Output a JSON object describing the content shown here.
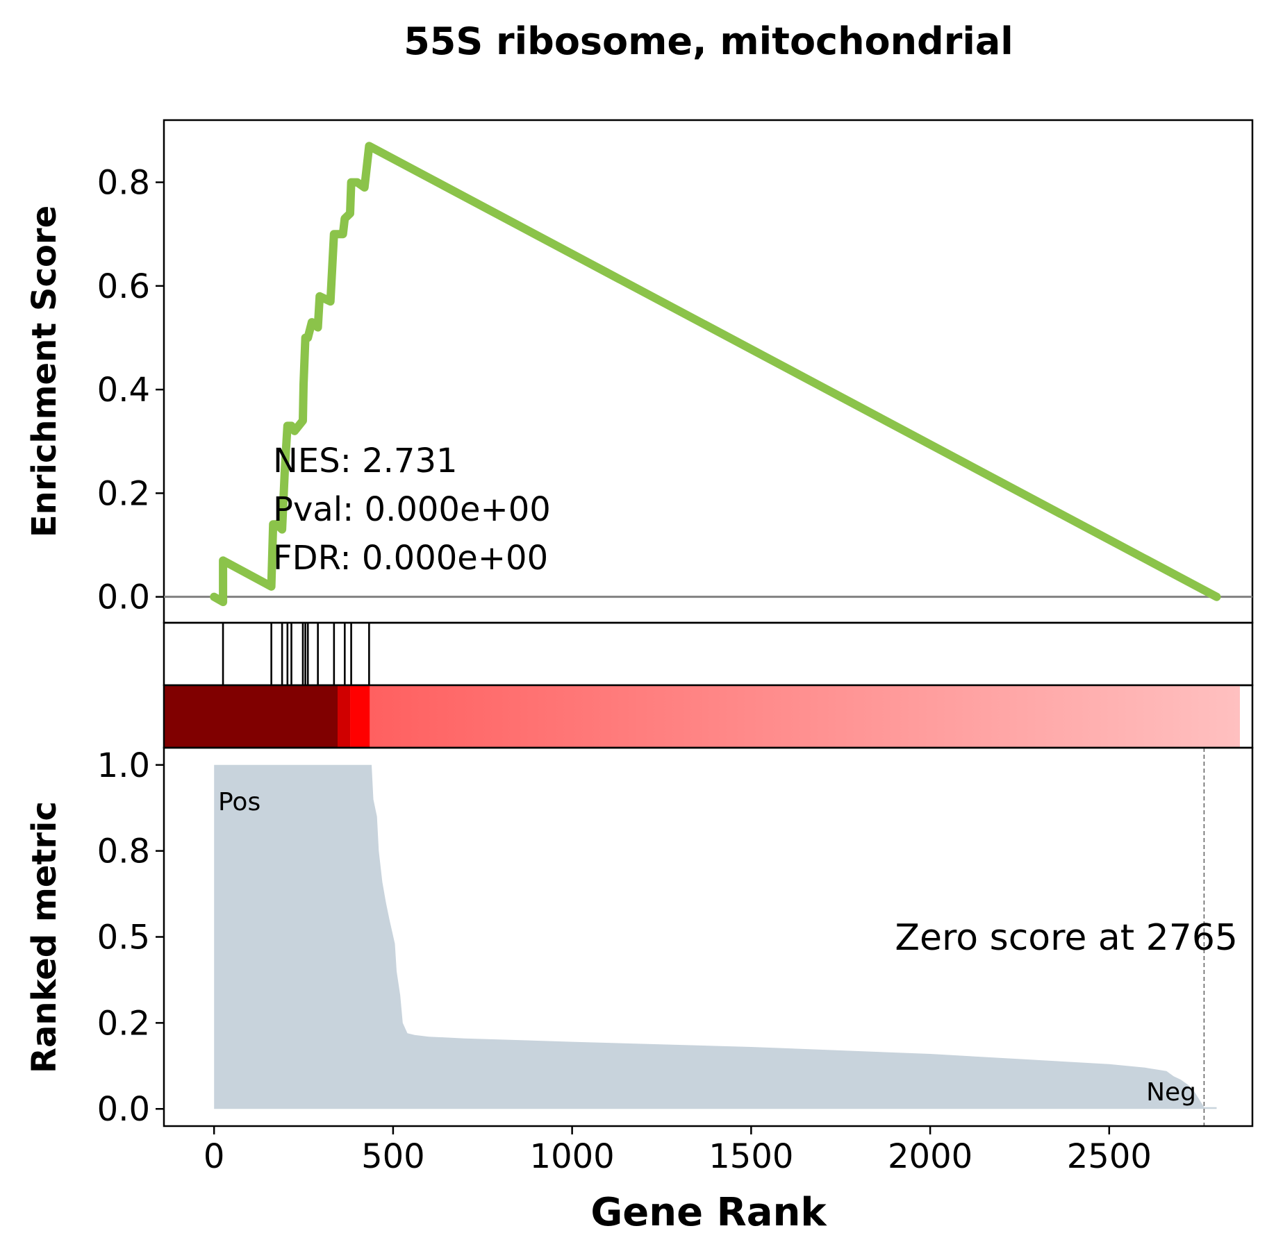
{
  "title": "55S ribosome, mitochondrial",
  "colors": {
    "es_line": "#8bc34a",
    "baseline": "#808080",
    "metric_fill": "#c8d3dc",
    "pos": "#ff0000",
    "neg": "#0000ff",
    "heat_dark": "#800000"
  },
  "chart_data": [
    {
      "type": "line",
      "name": "enrichment-score",
      "ylabel": "Enrichment Score",
      "xlim": [
        -140,
        2900
      ],
      "ylim": [
        -0.05,
        0.92
      ],
      "yticks": [
        0.0,
        0.2,
        0.4,
        0.6,
        0.8
      ],
      "ytick_labels": [
        "0.0",
        "0.2",
        "0.4",
        "0.6",
        "0.8"
      ],
      "x": [
        0,
        25,
        25,
        160,
        165,
        175,
        190,
        198,
        205,
        216,
        225,
        248,
        250,
        255,
        262,
        273,
        290,
        295,
        325,
        335,
        345,
        360,
        365,
        380,
        383,
        400,
        420,
        433,
        2800
      ],
      "y": [
        0.0,
        -0.01,
        0.07,
        0.02,
        0.14,
        0.14,
        0.13,
        0.25,
        0.33,
        0.33,
        0.32,
        0.34,
        0.41,
        0.5,
        0.5,
        0.53,
        0.52,
        0.58,
        0.57,
        0.7,
        0.7,
        0.7,
        0.73,
        0.74,
        0.8,
        0.8,
        0.79,
        0.87,
        0.0
      ],
      "stats": {
        "nes": "NES: 2.731",
        "pval": "Pval: 0.000e+00",
        "fdr": "FDR: 0.000e+00"
      }
    },
    {
      "type": "hits",
      "name": "gene-set-hits",
      "positions": [
        25,
        160,
        190,
        205,
        216,
        248,
        255,
        262,
        290,
        335,
        365,
        383,
        433
      ]
    },
    {
      "type": "heatmap",
      "name": "rank-heat-strip",
      "segments": [
        {
          "x0": -140,
          "x1": 345,
          "color": "#800000"
        },
        {
          "x0": 345,
          "x1": 380,
          "color": "#d00000"
        },
        {
          "x0": 380,
          "x1": 435,
          "color": "#ff0000"
        }
      ],
      "gradient": {
        "x0": 435,
        "x1": 2900,
        "from": "#ff6060",
        "to": "#ffc0c0"
      }
    },
    {
      "type": "area",
      "name": "ranked-metric",
      "ylabel": "Ranked metric",
      "xlabel": "Gene Rank",
      "xlim": [
        -140,
        2900
      ],
      "ylim": [
        -0.05,
        1.05
      ],
      "xticks": [
        0,
        500,
        1000,
        1500,
        2000,
        2500
      ],
      "xtick_labels": [
        "0",
        "500",
        "1000",
        "1500",
        "2000",
        "2500"
      ],
      "yticks": [
        0.0,
        0.25,
        0.5,
        0.75,
        1.0
      ],
      "ytick_labels": [
        "0.0",
        "0.2",
        "0.5",
        "0.8",
        "1.0"
      ],
      "x": [
        0,
        440,
        445,
        455,
        460,
        470,
        480,
        490,
        505,
        510,
        520,
        527,
        540,
        560,
        600,
        700,
        1000,
        1500,
        2000,
        2500,
        2600,
        2660,
        2680,
        2700,
        2720,
        2735,
        2750,
        2765,
        2800
      ],
      "y": [
        1.0,
        1.0,
        0.9,
        0.85,
        0.75,
        0.66,
        0.6,
        0.55,
        0.48,
        0.4,
        0.33,
        0.25,
        0.22,
        0.215,
        0.21,
        0.205,
        0.195,
        0.18,
        0.16,
        0.13,
        0.12,
        0.11,
        0.095,
        0.085,
        0.07,
        0.055,
        0.03,
        0.005,
        0.005
      ],
      "zero_score_x": 2765,
      "zero_score_label": "Zero score at 2765",
      "pos_label": "Pos",
      "neg_label": "Neg"
    }
  ]
}
